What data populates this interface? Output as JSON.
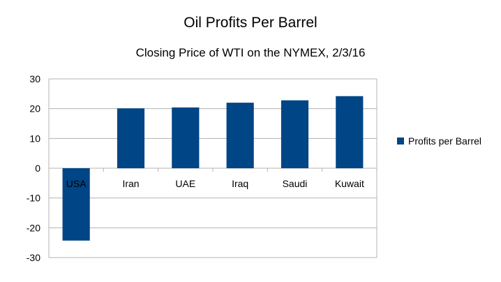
{
  "chart_data": {
    "type": "bar",
    "title": "Oil Profits Per Barrel",
    "subtitle": "Closing Price of WTI on the NYMEX, 2/3/16",
    "xlabel": "",
    "ylabel": "",
    "categories": [
      "USA",
      "Iran",
      "UAE",
      "Iraq",
      "Saudi",
      "Kuwait"
    ],
    "series": [
      {
        "name": "Profits per Barrel",
        "values": [
          -24.3,
          20.1,
          20.4,
          22.0,
          22.8,
          24.2
        ],
        "color": "#004586"
      }
    ],
    "ylim": [
      -30,
      30
    ],
    "yticks": [
      30,
      20,
      10,
      0,
      -10,
      -20,
      -30
    ],
    "grid": true,
    "legend": "right"
  }
}
